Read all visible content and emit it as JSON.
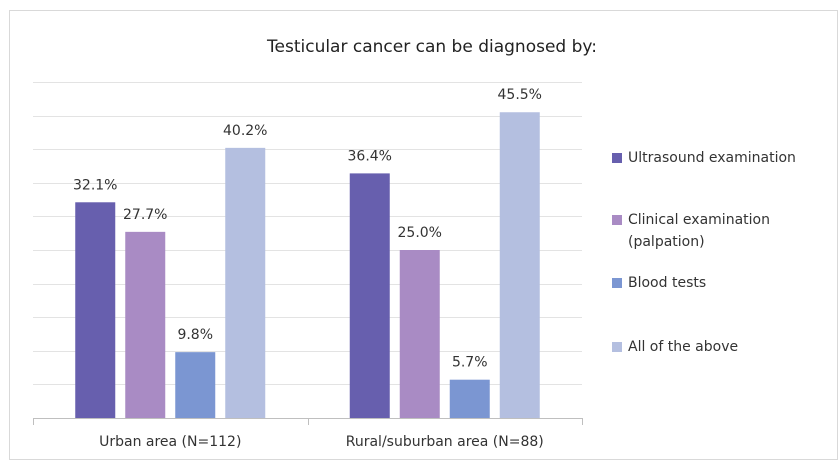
{
  "chart_data": {
    "type": "bar",
    "title": "Testicular cancer can be diagnosed by:",
    "categories": [
      "Urban area (N=112)",
      "Rural/suburban area (N=88)"
    ],
    "series": [
      {
        "name": "Ultrasound examination",
        "color": "#675fae",
        "values": [
          32.1,
          36.4
        ],
        "value_labels": [
          "32.1%",
          "36.4%"
        ]
      },
      {
        "name": "Clinical examination (palpation)",
        "color": "#a98bc4",
        "values": [
          27.7,
          25.0
        ],
        "value_labels": [
          "27.7%",
          "25.0%"
        ]
      },
      {
        "name": "Blood tests",
        "color": "#7b96d2",
        "values": [
          9.8,
          5.7
        ],
        "value_labels": [
          "9.8%",
          "5.7%"
        ]
      },
      {
        "name": "All of the above",
        "color": "#b4bfe0",
        "values": [
          40.2,
          45.5
        ],
        "value_labels": [
          "40.2%",
          "45.5%"
        ]
      }
    ],
    "ylim": [
      0,
      50
    ],
    "yticks": [
      0,
      5,
      10,
      15,
      20,
      25,
      30,
      35,
      40,
      45,
      50
    ],
    "grid": true,
    "legend": "right"
  }
}
